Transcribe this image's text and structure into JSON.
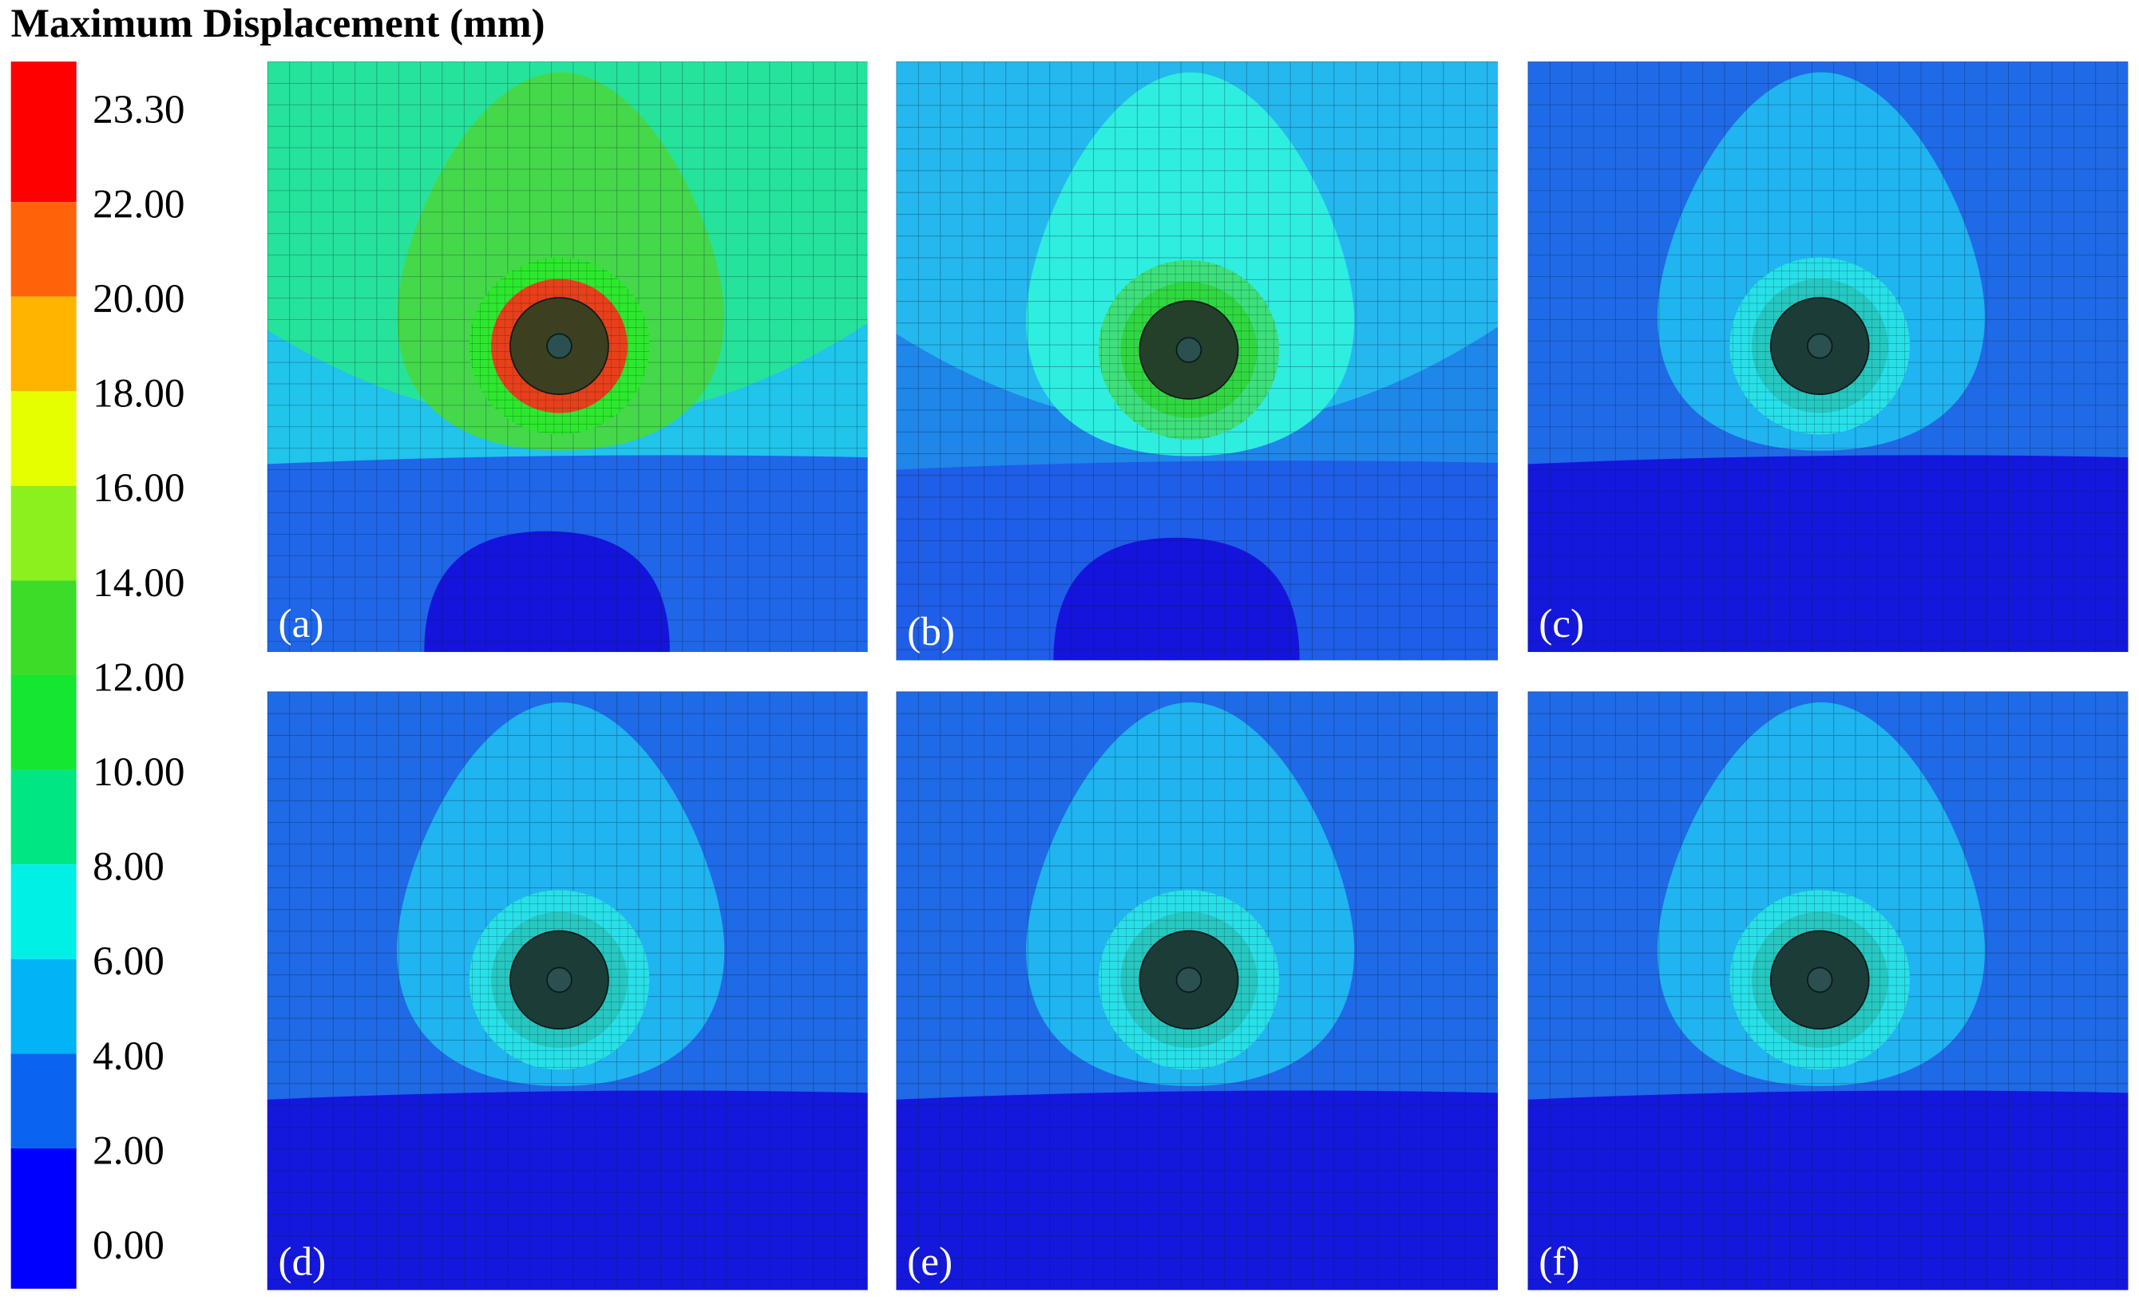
{
  "title": "Maximum Displacement (mm)",
  "colorbar": {
    "labels": [
      "23.30",
      "22.00",
      "20.00",
      "18.00",
      "16.00",
      "14.00",
      "12.00",
      "10.00",
      "8.00",
      "6.00",
      "4.00",
      "2.00",
      "0.00"
    ],
    "colors": [
      "#ff0000",
      "#ff640a",
      "#ffb400",
      "#e6ff00",
      "#8cf01e",
      "#3cdc28",
      "#14e632",
      "#00e682",
      "#00f0e6",
      "#00b4f5",
      "#0a64f0",
      "#0000ff"
    ]
  },
  "panels": [
    {
      "label": "(a)"
    },
    {
      "label": "(b)"
    },
    {
      "label": "(c)"
    },
    {
      "label": "(d)"
    },
    {
      "label": "(e)"
    },
    {
      "label": "(f)"
    }
  ]
}
